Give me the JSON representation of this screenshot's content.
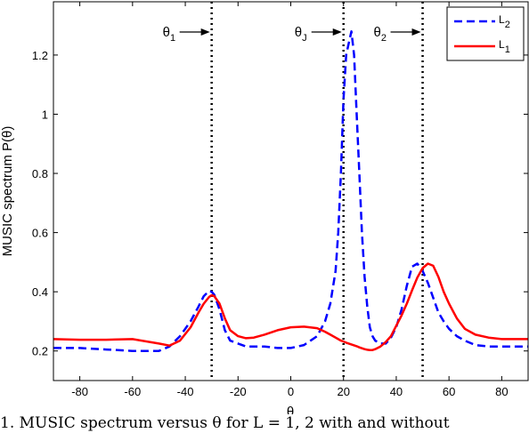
{
  "chart_data": {
    "type": "line",
    "xlabel": "θ",
    "ylabel": "MUSIC spectrum P(θ)",
    "xlim": [
      -90,
      90
    ],
    "ylim": [
      0.1,
      1.38
    ],
    "xticks": [
      -80,
      -60,
      -40,
      -20,
      0,
      20,
      40,
      60,
      80
    ],
    "yticks": [
      0.2,
      0.4,
      0.6,
      0.8,
      1,
      1.2
    ],
    "legend_position": "top-right",
    "x": [
      -90,
      -80,
      -70,
      -60,
      -50,
      -46,
      -42,
      -38,
      -35,
      -33,
      -31,
      -30,
      -29,
      -27,
      -25,
      -23,
      -20,
      -17,
      -14,
      -10,
      -5,
      0,
      5,
      10,
      13,
      15,
      17,
      18,
      19,
      20,
      21,
      22,
      23,
      24,
      25,
      26,
      27,
      28,
      29,
      30,
      31,
      32,
      34,
      36,
      38,
      40,
      42,
      44,
      46,
      48,
      50,
      52,
      54,
      56,
      58,
      60,
      63,
      66,
      70,
      75,
      80,
      85,
      90
    ],
    "series": [
      {
        "name": "L",
        "name_sub": "2",
        "color": "#0000ff",
        "style": "dashed",
        "values": [
          0.21,
          0.21,
          0.205,
          0.2,
          0.2,
          0.215,
          0.25,
          0.3,
          0.35,
          0.385,
          0.403,
          0.4,
          0.39,
          0.34,
          0.27,
          0.235,
          0.225,
          0.215,
          0.215,
          0.215,
          0.21,
          0.21,
          0.22,
          0.25,
          0.3,
          0.36,
          0.47,
          0.6,
          0.8,
          1.05,
          1.2,
          1.24,
          1.28,
          1.2,
          1.0,
          0.8,
          0.6,
          0.45,
          0.35,
          0.28,
          0.25,
          0.235,
          0.225,
          0.225,
          0.245,
          0.28,
          0.34,
          0.42,
          0.485,
          0.495,
          0.47,
          0.43,
          0.38,
          0.33,
          0.3,
          0.275,
          0.25,
          0.235,
          0.22,
          0.215,
          0.215,
          0.215,
          0.215
        ]
      },
      {
        "name": "L",
        "name_sub": "1",
        "color": "#ff0000",
        "style": "solid",
        "values": [
          0.24,
          0.238,
          0.238,
          0.24,
          0.225,
          0.218,
          0.235,
          0.28,
          0.33,
          0.36,
          0.382,
          0.388,
          0.385,
          0.36,
          0.31,
          0.27,
          0.25,
          0.243,
          0.245,
          0.255,
          0.27,
          0.28,
          0.282,
          0.277,
          0.265,
          0.255,
          0.245,
          0.24,
          0.235,
          0.232,
          0.228,
          0.225,
          0.222,
          0.219,
          0.216,
          0.212,
          0.209,
          0.206,
          0.204,
          0.203,
          0.203,
          0.206,
          0.215,
          0.23,
          0.25,
          0.285,
          0.32,
          0.36,
          0.405,
          0.448,
          0.48,
          0.495,
          0.488,
          0.45,
          0.4,
          0.36,
          0.31,
          0.275,
          0.255,
          0.245,
          0.24,
          0.24,
          0.24
        ]
      }
    ],
    "reference_lines": [
      {
        "label": "θ",
        "sub": "1",
        "x": -30
      },
      {
        "label": "θ",
        "sub": "J",
        "x": 20
      },
      {
        "label": "θ",
        "sub": "2",
        "x": 50
      }
    ]
  },
  "caption_text": "1. MUSIC spectrum versus θ for L = 1, 2 with and without"
}
